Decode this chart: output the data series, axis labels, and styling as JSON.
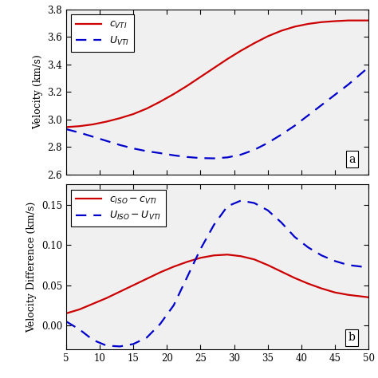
{
  "x_min": 5,
  "x_max": 50,
  "x_ticks": [
    5,
    10,
    15,
    20,
    25,
    30,
    35,
    40,
    45,
    50
  ],
  "panel_a": {
    "ylim": [
      2.6,
      3.8
    ],
    "yticks": [
      2.6,
      2.8,
      3.0,
      3.2,
      3.4,
      3.6,
      3.8
    ],
    "ylabel": "Velocity (km/s)",
    "label_a": "a",
    "legend": [
      {
        "label": "$c_{VTI}$",
        "color": "#cc0000",
        "linestyle": "solid"
      },
      {
        "label": "$U_{VTI}$",
        "color": "#0000cc",
        "linestyle": "dashed"
      }
    ],
    "c_VTI_x": [
      5,
      7,
      9,
      11,
      13,
      15,
      17,
      19,
      21,
      23,
      25,
      27,
      29,
      31,
      33,
      35,
      37,
      39,
      41,
      43,
      45,
      47,
      50
    ],
    "c_VTI_y": [
      2.945,
      2.952,
      2.965,
      2.985,
      3.01,
      3.04,
      3.08,
      3.13,
      3.185,
      3.245,
      3.31,
      3.375,
      3.44,
      3.5,
      3.555,
      3.605,
      3.645,
      3.675,
      3.695,
      3.708,
      3.715,
      3.72,
      3.72
    ],
    "U_VTI_x": [
      5,
      7,
      9,
      11,
      13,
      15,
      17,
      19,
      21,
      23,
      25,
      27,
      29,
      31,
      33,
      35,
      37,
      39,
      41,
      43,
      45,
      47,
      50
    ],
    "U_VTI_y": [
      2.93,
      2.905,
      2.875,
      2.845,
      2.815,
      2.79,
      2.77,
      2.756,
      2.74,
      2.728,
      2.72,
      2.718,
      2.725,
      2.745,
      2.78,
      2.83,
      2.89,
      2.955,
      3.03,
      3.105,
      3.18,
      3.255,
      3.38
    ]
  },
  "panel_b": {
    "ylim": [
      -0.03,
      0.175
    ],
    "yticks": [
      0.0,
      0.05,
      0.1,
      0.15
    ],
    "ylabel": "Velocity Difference (km/s)",
    "label_b": "b",
    "legend": [
      {
        "label": "$c_{ISO} - c_{VTI}$",
        "color": "#cc0000",
        "linestyle": "solid"
      },
      {
        "label": "$U_{ISO} - U_{VTI}$",
        "color": "#0000cc",
        "linestyle": "dashed"
      }
    ],
    "c_diff_x": [
      5,
      7,
      9,
      11,
      13,
      15,
      17,
      19,
      21,
      23,
      25,
      27,
      29,
      31,
      33,
      35,
      37,
      39,
      41,
      43,
      45,
      47,
      50
    ],
    "c_diff_y": [
      0.015,
      0.02,
      0.027,
      0.034,
      0.042,
      0.05,
      0.058,
      0.066,
      0.073,
      0.079,
      0.084,
      0.087,
      0.088,
      0.086,
      0.082,
      0.075,
      0.067,
      0.059,
      0.052,
      0.046,
      0.041,
      0.038,
      0.035
    ],
    "U_diff_x": [
      5,
      7,
      9,
      11,
      13,
      15,
      17,
      19,
      21,
      23,
      25,
      27,
      29,
      31,
      33,
      35,
      37,
      39,
      41,
      43,
      45,
      47,
      50
    ],
    "U_diff_y": [
      0.005,
      -0.005,
      -0.018,
      -0.025,
      -0.026,
      -0.023,
      -0.015,
      0.002,
      0.025,
      0.06,
      0.095,
      0.125,
      0.148,
      0.155,
      0.152,
      0.143,
      0.128,
      0.11,
      0.097,
      0.087,
      0.08,
      0.075,
      0.072
    ]
  },
  "red_color": "#cc0000",
  "blue_color": "#0000cc",
  "line_width": 1.6,
  "bg_color": "#f0f0f0",
  "font_family": "DejaVu Serif"
}
